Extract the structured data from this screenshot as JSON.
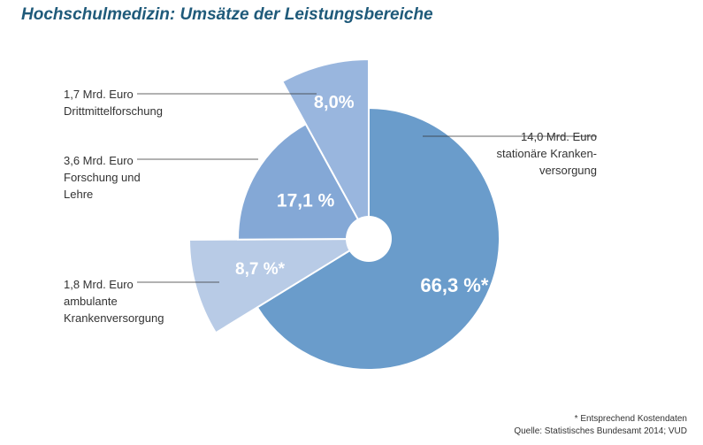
{
  "title": "Hochschulmedizin: Umsätze der Leistungsbereiche",
  "chart_data": {
    "type": "pie",
    "title": "Hochschulmedizin: Umsätze der Leistungsbereiche",
    "slices": [
      {
        "value": 66.3,
        "label": "66,3 %*",
        "amount": "14,0 Mrd. Euro",
        "category_lines": [
          "stationäre Kranken-",
          "versorgung"
        ],
        "color": "#6a9ccb",
        "exploded": false
      },
      {
        "value": 8.7,
        "label": "8,7 %*",
        "amount": "1,8 Mrd. Euro",
        "category_lines": [
          "ambulante",
          "Krankenversorgung"
        ],
        "color": "#b8cbe6",
        "exploded": true
      },
      {
        "value": 17.1,
        "label": "17,1 %",
        "amount": "3,6 Mrd. Euro",
        "category_lines": [
          "Forschung und",
          "Lehre"
        ],
        "color": "#84a8d6",
        "exploded": false
      },
      {
        "value": 8.0,
        "label": "8,0%",
        "amount": "1,7 Mrd. Euro",
        "category_lines": [
          "Drittmittelforschung"
        ],
        "color": "#99b6de",
        "exploded": true
      }
    ]
  },
  "footnote": "* Entsprechend Kostendaten",
  "source": "Quelle: Statistisches Bundesamt 2014; VUD"
}
